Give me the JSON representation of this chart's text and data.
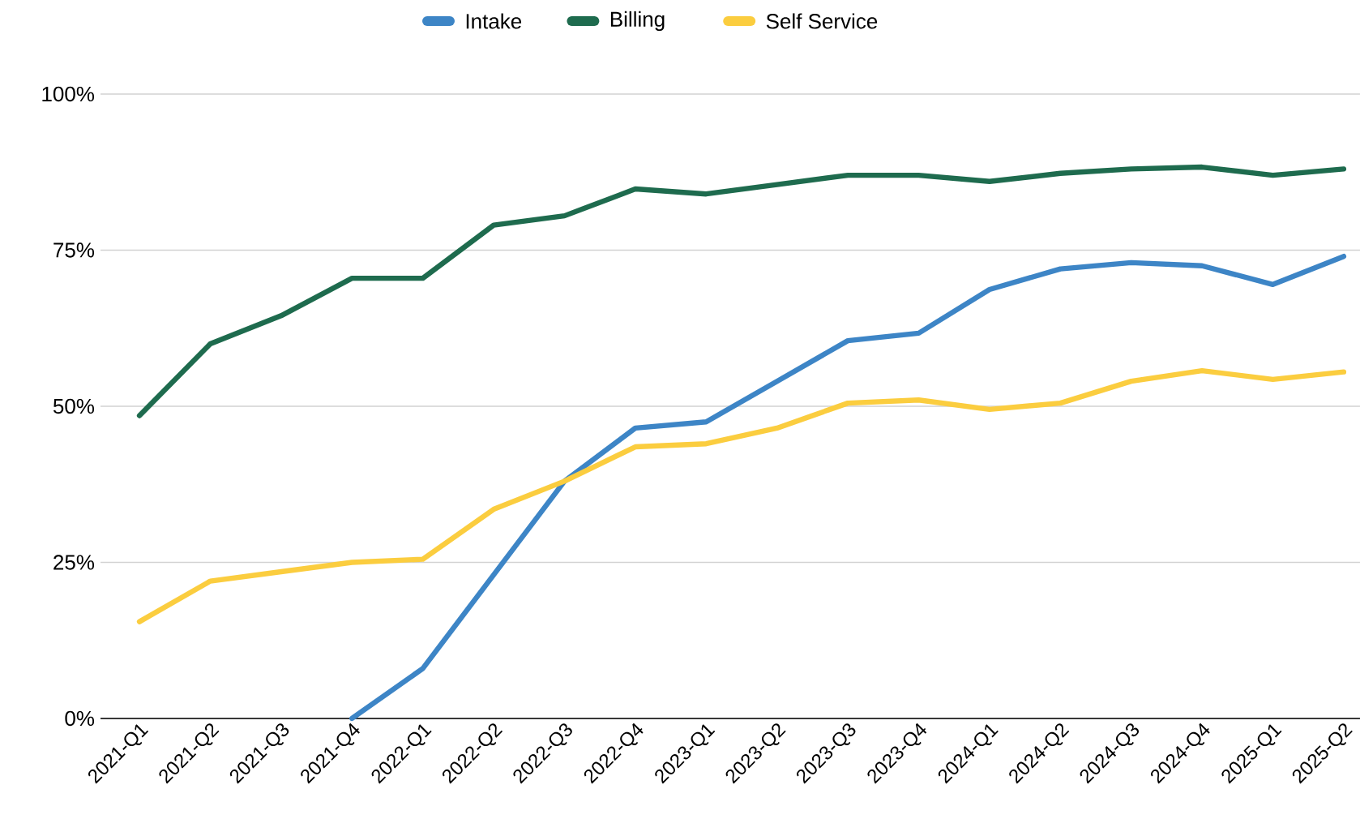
{
  "chart_data": {
    "type": "line",
    "categories": [
      "2021-Q1",
      "2021-Q2",
      "2021-Q3",
      "2021-Q4",
      "2022-Q1",
      "2022-Q2",
      "2022-Q3",
      "2022-Q4",
      "2023-Q1",
      "2023-Q2",
      "2023-Q3",
      "2023-Q4",
      "2024-Q1",
      "2024-Q2",
      "2024-Q3",
      "2024-Q4",
      "2025-Q1",
      "2025-Q2"
    ],
    "series": [
      {
        "name": "Intake",
        "color": "#3d85c6",
        "values": [
          null,
          null,
          null,
          0,
          8,
          23,
          38,
          46.5,
          47.5,
          54,
          60.5,
          61.7,
          68.7,
          72,
          73,
          72.5,
          69.5,
          74
        ]
      },
      {
        "name": "Billing",
        "color": "#1e6b4e",
        "values": [
          48.5,
          60,
          64.5,
          70.5,
          70.5,
          79,
          80.5,
          84.8,
          84,
          85.5,
          87,
          87,
          86,
          87.3,
          88,
          88.3,
          87,
          88
        ]
      },
      {
        "name": "Self Service",
        "color": "#fbcd3f",
        "values": [
          15.5,
          22,
          23.5,
          25,
          25.5,
          33.5,
          38,
          43.5,
          44,
          46.5,
          50.5,
          51,
          49.5,
          50.5,
          54,
          55.7,
          54.3,
          55.5
        ]
      }
    ],
    "ylim": [
      0,
      100
    ],
    "yticks": [
      {
        "value": 0,
        "label": "0%"
      },
      {
        "value": 25,
        "label": "25%"
      },
      {
        "value": 50,
        "label": "50%"
      },
      {
        "value": 75,
        "label": "75%"
      },
      {
        "value": 100,
        "label": "100%"
      }
    ],
    "grid": "y",
    "legend": "top",
    "marker": "none",
    "line_style": "solid"
  }
}
